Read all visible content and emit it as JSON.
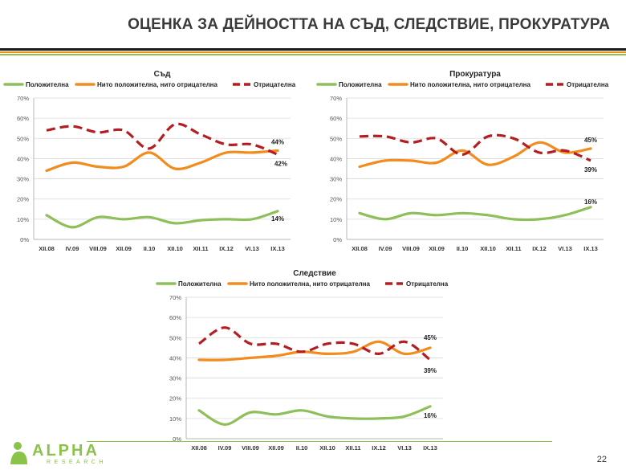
{
  "page": {
    "title": "ОЦЕНКА ЗА ДЕЙНОСТТА НА СЪД, СЛЕДСТВИЕ, ПРОКУРАТУРА",
    "page_number": "22",
    "logo_main": "ALPHA",
    "logo_sub": "RESEARCH"
  },
  "colors": {
    "positive": "#8fbf5a",
    "neutral": "#f28c1e",
    "negative": "#b41e23",
    "rule_dark": "#1a1a1a",
    "rule_orange": "#f28c1e",
    "rule_green": "#8bc34a"
  },
  "chart_data": [
    {
      "type": "line",
      "title": "Съд",
      "categories": [
        "XII.08",
        "IV.09",
        "VIII.09",
        "XII.09",
        "II.10",
        "XII.10",
        "XII.11",
        "IX.12",
        "VI.13",
        "IX.13"
      ],
      "ylim": [
        0,
        70
      ],
      "yticks": [
        "0%",
        "10%",
        "20%",
        "30%",
        "40%",
        "50%",
        "60%",
        "70%"
      ],
      "grid": true,
      "legend": "top",
      "series": [
        {
          "name": "Положителна",
          "values": [
            12,
            6,
            11,
            10,
            11,
            8,
            9.5,
            10,
            10,
            14
          ],
          "end_label": "14%"
        },
        {
          "name": "Нито положителна, нито отрицателна",
          "values": [
            34,
            38,
            36,
            36,
            43,
            35,
            38,
            43,
            43,
            44
          ],
          "end_label": "44%"
        },
        {
          "name": "Отрицателна",
          "values": [
            54,
            56,
            53,
            54,
            45,
            57,
            52,
            47,
            47,
            42
          ],
          "end_label": "42%"
        }
      ]
    },
    {
      "type": "line",
      "title": "Прокуратура",
      "categories": [
        "XII.08",
        "IV.09",
        "VIII.09",
        "XII.09",
        "II.10",
        "XII.10",
        "XII.11",
        "IX.12",
        "VI.13",
        "IX.13"
      ],
      "ylim": [
        0,
        70
      ],
      "yticks": [
        "0%",
        "10%",
        "20%",
        "30%",
        "40%",
        "50%",
        "60%",
        "70%"
      ],
      "grid": true,
      "legend": "top",
      "series": [
        {
          "name": "Положителна",
          "values": [
            13,
            10,
            13,
            12,
            13,
            12,
            10,
            10,
            12,
            16
          ],
          "end_label": "16%"
        },
        {
          "name": "Нито положителна, нито отрицателна",
          "values": [
            36,
            39,
            39,
            38,
            44,
            37,
            41,
            48,
            43,
            45
          ],
          "end_label": "45%"
        },
        {
          "name": "Отрицателна",
          "values": [
            51,
            51,
            48,
            50,
            42,
            51,
            50,
            43,
            44,
            39
          ],
          "end_label": "39%"
        }
      ]
    },
    {
      "type": "line",
      "title": "Следствие",
      "categories": [
        "XII.08",
        "IV.09",
        "VIII.09",
        "XII.09",
        "II.10",
        "XII.10",
        "XII.11",
        "IX.12",
        "VI.13",
        "IX.13"
      ],
      "ylim": [
        0,
        70
      ],
      "yticks": [
        "0%",
        "10%",
        "20%",
        "30%",
        "40%",
        "50%",
        "60%",
        "70%"
      ],
      "grid": true,
      "legend": "top",
      "series": [
        {
          "name": "Положителна",
          "values": [
            14,
            7,
            13,
            12,
            14,
            11,
            10,
            10,
            11,
            16
          ],
          "end_label": "16%"
        },
        {
          "name": "Нито положителна, нито отрицателна",
          "values": [
            39,
            39,
            40,
            41,
            43,
            42,
            43,
            48,
            42,
            45
          ],
          "end_label": "45%"
        },
        {
          "name": "Отрицателна",
          "values": [
            47,
            55,
            47,
            47,
            43,
            47,
            47,
            42,
            48,
            39
          ],
          "end_label": "39%"
        }
      ]
    }
  ]
}
